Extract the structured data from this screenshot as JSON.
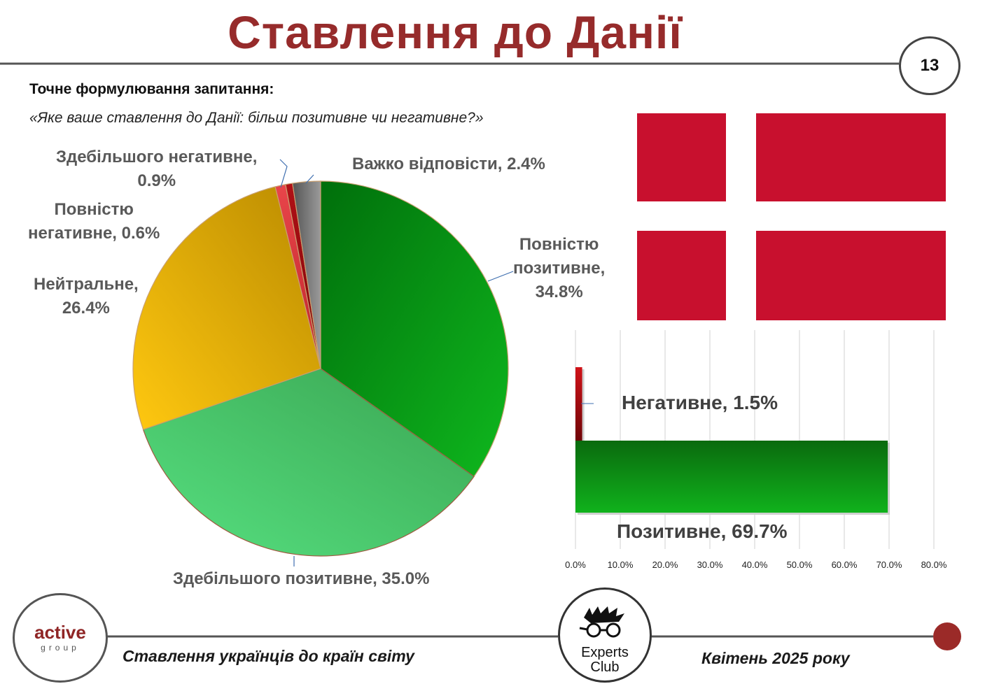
{
  "page": {
    "title": "Ставлення до Данії",
    "page_number": "13",
    "question_label": "Точне формулювання запитання:",
    "question_text": "«Яке ваше ставлення до Данії: більш позитивне чи негативне?»"
  },
  "footer": {
    "left_text": "Ставлення українців до країн світу",
    "right_text": "Квітень 2025 року",
    "logo_left": {
      "main": "active",
      "sub": "group"
    },
    "logo_right": {
      "line1": "Experts",
      "line2": "Club"
    }
  },
  "colors": {
    "title": "#962b2b",
    "flag_red": "#c8102e",
    "accent_dot": "#9b2a28"
  },
  "chart_data": [
    {
      "type": "pie",
      "slices": [
        {
          "label": "Повністю позитивне",
          "value": 34.8,
          "display": "Повністю\nпозитивне,\n34.8%",
          "color": "#0a8a10"
        },
        {
          "label": "Здебільшого позитивне",
          "value": 35.0,
          "display": "Здебільшого позитивне, 35.0%",
          "color": "#4fc35f"
        },
        {
          "label": "Нейтральне",
          "value": 26.4,
          "display": "Нейтральне,\n26.4%",
          "color": "#e0a400"
        },
        {
          "label": "Здебільшого негативне",
          "value": 0.9,
          "display": "Здебільшого негативне,\n0.9%",
          "color": "#e0343c"
        },
        {
          "label": "Повністю негативне",
          "value": 0.6,
          "display": "Повністю\nнегативне, 0.6%",
          "color": "#9e0b10"
        },
        {
          "label": "Важко відповісти",
          "value": 2.4,
          "display": "Важко відповісти, 2.4%",
          "color": "#7a7a7a"
        }
      ]
    },
    {
      "type": "bar",
      "orientation": "horizontal",
      "categories": [
        "Негативне",
        "Позитивне"
      ],
      "values": [
        1.5,
        69.7
      ],
      "labels": [
        "Негативне, 1.5%",
        "Позитивне, 69.7%"
      ],
      "colors": [
        "#b00d12",
        "#0a9a12"
      ],
      "xlim": [
        0,
        80
      ],
      "xticks": [
        "0.0%",
        "10.0%",
        "20.0%",
        "30.0%",
        "40.0%",
        "50.0%",
        "60.0%",
        "70.0%",
        "80.0%"
      ],
      "grid": true
    }
  ]
}
